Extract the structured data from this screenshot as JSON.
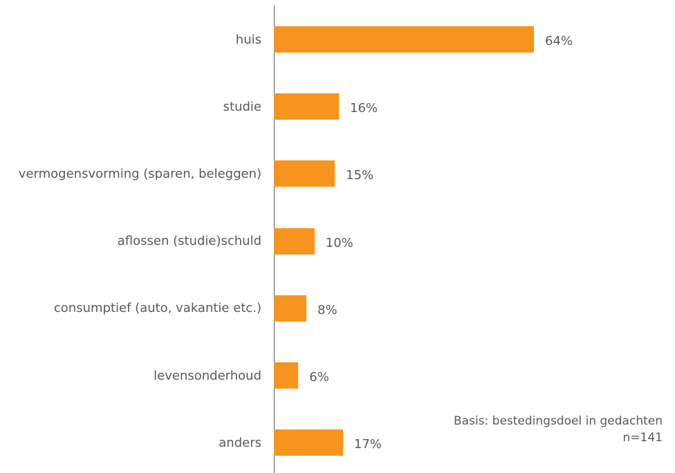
{
  "chart_data": {
    "type": "bar",
    "orientation": "horizontal",
    "categories": [
      "huis",
      "studie",
      "vermogensvorming (sparen, beleggen)",
      "aflossen (studie)schuld",
      "consumptief (auto, vakantie etc.)",
      "levensonderhoud",
      "anders"
    ],
    "values": [
      64,
      16,
      15,
      10,
      8,
      6,
      17
    ],
    "value_labels": [
      "64%",
      "16%",
      "15%",
      "10%",
      "8%",
      "6%",
      "17%"
    ],
    "color": "#f7941d",
    "xlim": [
      0,
      80
    ],
    "annotations": [
      "Basis: bestedingsdoel in gedachten",
      "n=141"
    ]
  }
}
